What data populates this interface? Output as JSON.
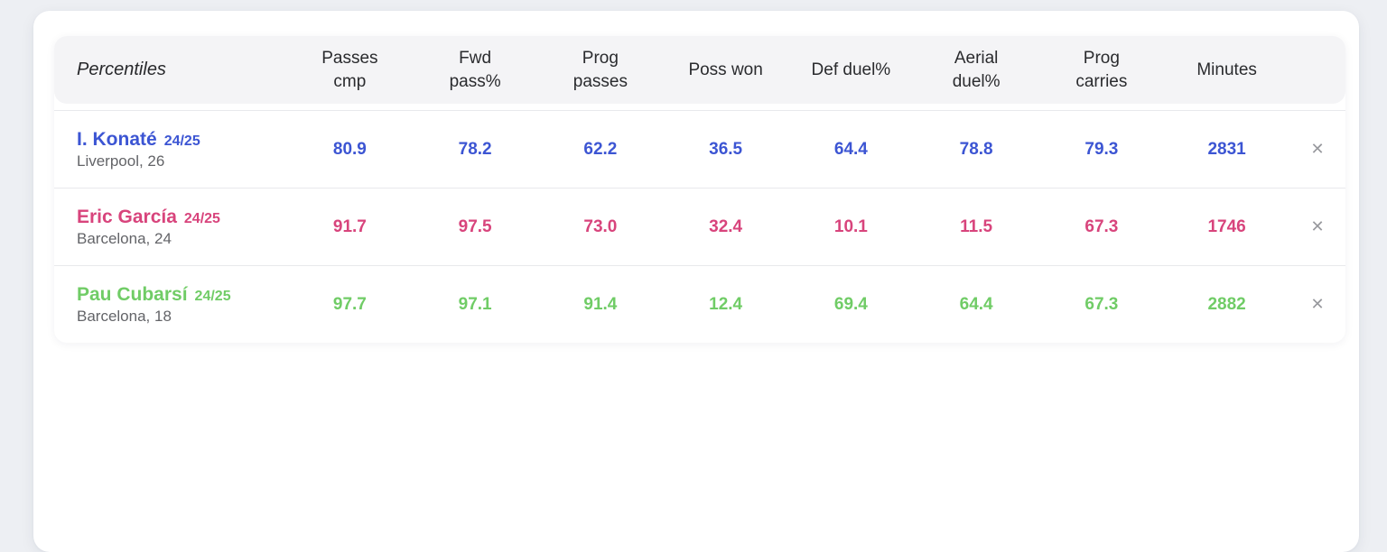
{
  "colors": {
    "page_bg": "#edeff3",
    "card_bg": "#ffffff",
    "header_band_bg": "#f4f4f6",
    "header_text": "#2a2b2e",
    "divider": "#e8e9ec",
    "club_text": "#636468",
    "close_icon": "#98999e",
    "row_blue": "#3c55d3",
    "row_pink": "#d8447c",
    "row_green": "#70cc66"
  },
  "icons": {
    "close": "✕"
  },
  "table": {
    "corner_header": "Percentiles",
    "columns": [
      "Passes\ncmp",
      "Fwd\npass%",
      "Prog\npasses",
      "Poss won",
      "Def duel%",
      "Aerial\nduel%",
      "Prog\ncarries",
      "Minutes"
    ],
    "rows": [
      {
        "name": "I. Konaté",
        "season": "24/25",
        "club": "Liverpool, 26",
        "color": "#3c55d3",
        "values": [
          "80.9",
          "78.2",
          "62.2",
          "36.5",
          "64.4",
          "78.8",
          "79.3",
          "2831"
        ]
      },
      {
        "name": "Eric García",
        "season": "24/25",
        "club": "Barcelona, 24",
        "color": "#d8447c",
        "values": [
          "91.7",
          "97.5",
          "73.0",
          "32.4",
          "10.1",
          "11.5",
          "67.3",
          "1746"
        ]
      },
      {
        "name": "Pau Cubarsí",
        "season": "24/25",
        "club": "Barcelona, 18",
        "color": "#70cc66",
        "values": [
          "97.7",
          "97.1",
          "91.4",
          "12.4",
          "69.4",
          "64.4",
          "67.3",
          "2882"
        ]
      }
    ]
  }
}
